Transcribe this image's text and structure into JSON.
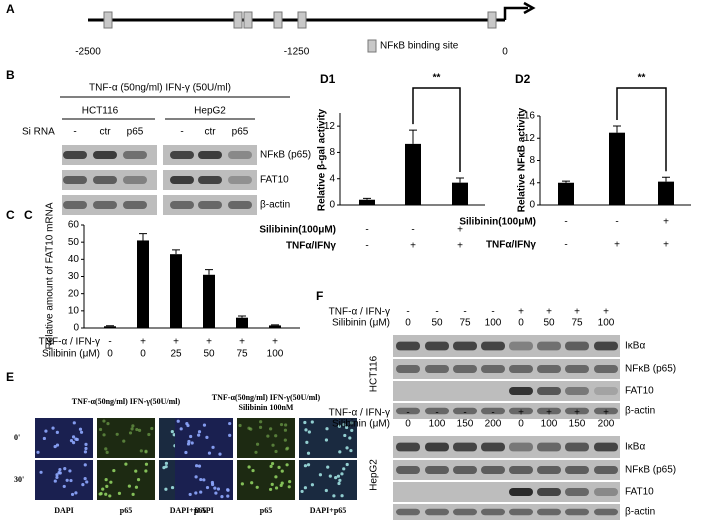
{
  "panel_labels": {
    "a": "A",
    "b": "B",
    "c": "C",
    "e": "E",
    "f": "F"
  },
  "promoter": {
    "ticks": [
      -2500,
      -1250,
      0
    ],
    "legend": "NFκB binding site"
  },
  "blot_b": {
    "header": "TNF-α (50ng/ml) IFN-γ (50U/ml)",
    "cell_lines": [
      "HCT116",
      "HepG2"
    ],
    "sirna_label": "Si RNA",
    "lanes": [
      "-",
      "ctr",
      "p65",
      "-",
      "ctr",
      "p65"
    ],
    "proteins": [
      "NFκB (p65)",
      "FAT10",
      "β-actin"
    ]
  },
  "chart_data": [
    {
      "type": "bar",
      "label": "C",
      "y_label": "Relative amount of FAT10 mRNA",
      "category_rows": [
        {
          "name": "TNF-α / IFN-γ",
          "labels": [
            "-",
            "+",
            "+",
            "+",
            "+",
            "+"
          ]
        },
        {
          "name": "Silibinin (μM)",
          "labels": [
            "0",
            "0",
            "25",
            "50",
            "75",
            "100"
          ]
        }
      ],
      "values": [
        1,
        51,
        43,
        31,
        6,
        1.5
      ],
      "errors": [
        0.3,
        4,
        2.5,
        3,
        1,
        0.3
      ],
      "color": "#000000",
      "ylim": [
        0,
        60
      ],
      "yticks": [
        0,
        10,
        20,
        30,
        40,
        50,
        60
      ]
    },
    {
      "type": "bar",
      "title": "D1",
      "y_label": "Relative β-gal activity",
      "annotation": "**",
      "category_rows": [
        {
          "name": "Silibinin(100μM)",
          "labels": [
            "-",
            "-",
            "+"
          ]
        },
        {
          "name": "TNFα/IFNγ",
          "labels": [
            "-",
            "+",
            "+"
          ]
        }
      ],
      "values": [
        0.8,
        9.3,
        3.4
      ],
      "errors": [
        0.2,
        2.1,
        0.7
      ],
      "color": "#000000",
      "ylim": [
        0,
        14
      ],
      "yticks": [
        0,
        4,
        8,
        12
      ]
    },
    {
      "type": "bar",
      "title": "D2",
      "y_label": "Relative NFκB activity",
      "annotation": "**",
      "category_rows": [
        {
          "name": "Silibinin(100μM)",
          "labels": [
            "-",
            "-",
            "+"
          ]
        },
        {
          "name": "TNFα/IFNγ",
          "labels": [
            "-",
            "+",
            "+"
          ]
        }
      ],
      "values": [
        4,
        13,
        4.2
      ],
      "errors": [
        0.3,
        1.2,
        0.8
      ],
      "color": "#000000",
      "ylim": [
        0,
        16
      ],
      "yticks": [
        0,
        4,
        8,
        12,
        16
      ]
    }
  ],
  "panel_e": {
    "groups": [
      {
        "header": [
          "TNF-α(50ng/ml) IFN-γ(50U/ml)"
        ],
        "columns": [
          "DAPI",
          "p65",
          "DAPI+p65"
        ]
      },
      {
        "header": [
          "TNF-α(50ng/ml) IFN-γ(50U/ml)",
          "Silibinin 100nM"
        ],
        "columns": [
          "DAPI",
          "p65",
          "DAPI+p65"
        ]
      }
    ],
    "rows": [
      "0'",
      "30'"
    ]
  },
  "blot_f": {
    "blocks": [
      {
        "cell_line": "HCT116",
        "rows": [
          {
            "name": "TNF-α / IFN-γ",
            "labels": [
              "-",
              "-",
              "-",
              "-",
              "+",
              "+",
              "+",
              "+"
            ]
          },
          {
            "name": "Silibinin (μM)",
            "labels": [
              "0",
              "50",
              "75",
              "100",
              "0",
              "50",
              "75",
              "100"
            ]
          }
        ],
        "proteins": [
          "IκBα",
          "NFκB (p65)",
          "FAT10",
          "β-actin"
        ]
      },
      {
        "cell_line": "HepG2",
        "rows": [
          {
            "name": "TNF-α / IFN-γ",
            "labels": [
              "-",
              "-",
              "-",
              "-",
              "+",
              "+",
              "+",
              "+"
            ]
          },
          {
            "name": "Silibinin (μM)",
            "labels": [
              "0",
              "100",
              "150",
              "200",
              "0",
              "100",
              "150",
              "200"
            ]
          }
        ],
        "proteins": [
          "IκBα",
          "NFκB (p65)",
          "FAT10",
          "β-actin"
        ]
      }
    ]
  }
}
